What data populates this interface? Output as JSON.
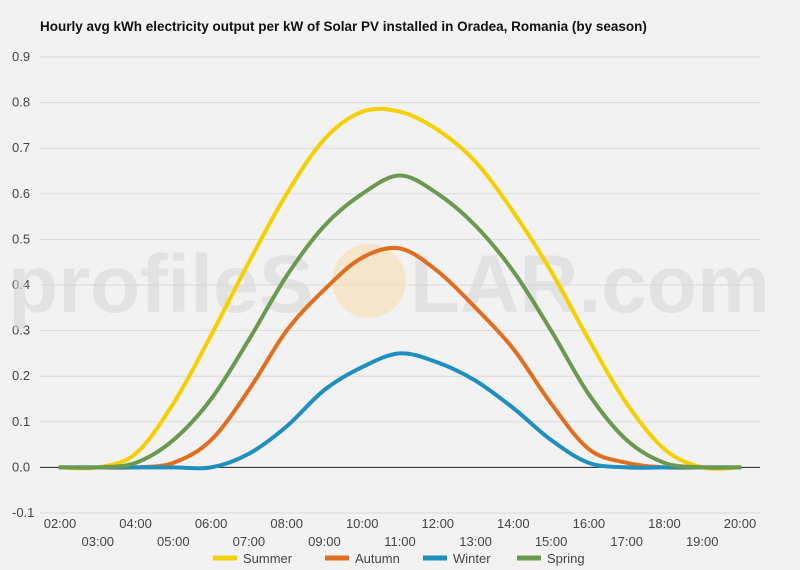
{
  "chart_data": {
    "type": "line",
    "title": "Hourly avg kWh electricity output per kW of Solar PV installed in Oradea, Romania (by season)",
    "xlabel": "",
    "ylabel": "",
    "ylim": [
      -0.1,
      0.9
    ],
    "yticks": [
      "-0.1",
      "0.0",
      "0.1",
      "0.2",
      "0.3",
      "0.4",
      "0.5",
      "0.6",
      "0.7",
      "0.8",
      "0.9"
    ],
    "categories": [
      "02:00",
      "03:00",
      "04:00",
      "05:00",
      "06:00",
      "07:00",
      "08:00",
      "09:00",
      "10:00",
      "11:00",
      "12:00",
      "13:00",
      "14:00",
      "15:00",
      "16:00",
      "17:00",
      "18:00",
      "19:00",
      "20:00"
    ],
    "grid": true,
    "legend_position": "bottom",
    "series": [
      {
        "name": "Summer",
        "color": "#f5d000",
        "values": [
          0.0,
          0.0,
          0.03,
          0.14,
          0.29,
          0.45,
          0.6,
          0.72,
          0.78,
          0.78,
          0.74,
          0.67,
          0.56,
          0.43,
          0.28,
          0.14,
          0.04,
          0.0,
          0.0
        ]
      },
      {
        "name": "Autumn",
        "color": "#e06e1e",
        "values": [
          0.0,
          0.0,
          0.0,
          0.01,
          0.06,
          0.17,
          0.3,
          0.39,
          0.46,
          0.48,
          0.43,
          0.35,
          0.26,
          0.14,
          0.04,
          0.01,
          0.0,
          0.0,
          0.0
        ]
      },
      {
        "name": "Winter",
        "color": "#1f8fbf",
        "values": [
          0.0,
          0.0,
          0.0,
          0.0,
          0.0,
          0.03,
          0.09,
          0.17,
          0.22,
          0.25,
          0.23,
          0.19,
          0.13,
          0.06,
          0.01,
          0.0,
          0.0,
          0.0,
          0.0
        ]
      },
      {
        "name": "Spring",
        "color": "#6a9a50",
        "values": [
          0.0,
          0.0,
          0.01,
          0.06,
          0.15,
          0.28,
          0.42,
          0.53,
          0.6,
          0.64,
          0.6,
          0.53,
          0.43,
          0.3,
          0.16,
          0.06,
          0.01,
          0.0,
          0.0
        ]
      }
    ]
  },
  "watermark": {
    "left": "profileS",
    "right": "LAR.com"
  }
}
